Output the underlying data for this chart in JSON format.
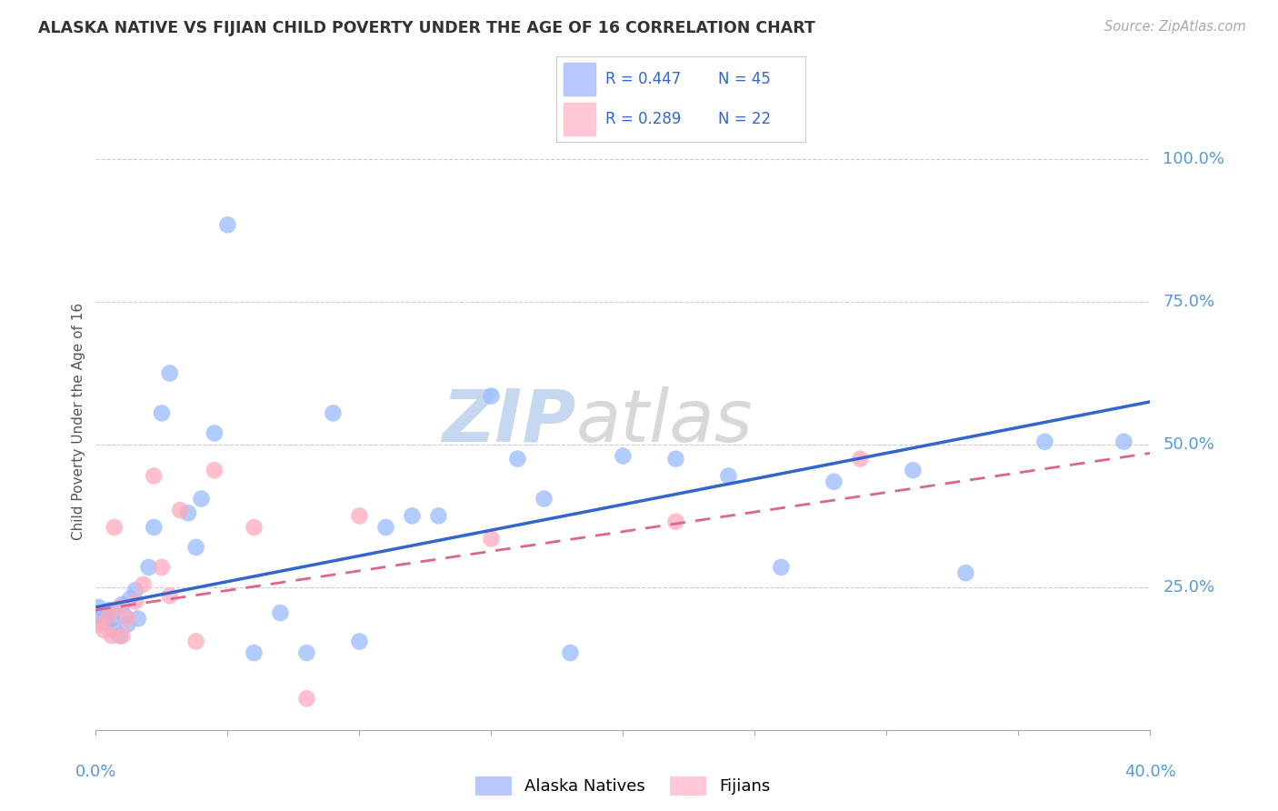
{
  "title": "ALASKA NATIVE VS FIJIAN CHILD POVERTY UNDER THE AGE OF 16 CORRELATION CHART",
  "source": "Source: ZipAtlas.com",
  "ylabel": "Child Poverty Under the Age of 16",
  "xlim": [
    0.0,
    0.4
  ],
  "ylim": [
    0.0,
    1.08
  ],
  "alaska_color": "#99bbff",
  "fijian_color": "#ffaabb",
  "alaska_line_color": "#3366cc",
  "fijian_line_color": "#dd6688",
  "alaska_x": [
    0.001,
    0.002,
    0.003,
    0.004,
    0.005,
    0.006,
    0.007,
    0.008,
    0.009,
    0.01,
    0.011,
    0.012,
    0.013,
    0.015,
    0.016,
    0.02,
    0.022,
    0.025,
    0.028,
    0.035,
    0.038,
    0.04,
    0.045,
    0.05,
    0.06,
    0.07,
    0.08,
    0.09,
    0.1,
    0.11,
    0.12,
    0.13,
    0.15,
    0.16,
    0.17,
    0.18,
    0.2,
    0.22,
    0.24,
    0.26,
    0.28,
    0.31,
    0.33,
    0.36,
    0.39
  ],
  "alaska_y": [
    0.215,
    0.2,
    0.19,
    0.185,
    0.21,
    0.195,
    0.175,
    0.21,
    0.165,
    0.22,
    0.2,
    0.185,
    0.23,
    0.245,
    0.195,
    0.285,
    0.355,
    0.555,
    0.625,
    0.38,
    0.32,
    0.405,
    0.52,
    0.885,
    0.135,
    0.205,
    0.135,
    0.555,
    0.155,
    0.355,
    0.375,
    0.375,
    0.585,
    0.475,
    0.405,
    0.135,
    0.48,
    0.475,
    0.445,
    0.285,
    0.435,
    0.455,
    0.275,
    0.505,
    0.505
  ],
  "fijian_x": [
    0.001,
    0.003,
    0.005,
    0.006,
    0.007,
    0.009,
    0.01,
    0.012,
    0.015,
    0.018,
    0.022,
    0.025,
    0.028,
    0.032,
    0.038,
    0.045,
    0.06,
    0.08,
    0.1,
    0.15,
    0.22,
    0.29
  ],
  "fijian_y": [
    0.185,
    0.175,
    0.2,
    0.165,
    0.355,
    0.215,
    0.165,
    0.195,
    0.225,
    0.255,
    0.445,
    0.285,
    0.235,
    0.385,
    0.155,
    0.455,
    0.355,
    0.055,
    0.375,
    0.335,
    0.365,
    0.475
  ],
  "alaska_trend_x": [
    0.0,
    0.4
  ],
  "alaska_trend_y": [
    0.215,
    0.575
  ],
  "fijian_trend_x": [
    0.0,
    0.4
  ],
  "fijian_trend_y": [
    0.21,
    0.485
  ],
  "ytick_values": [
    0.25,
    0.5,
    0.75,
    1.0
  ],
  "ytick_labels": [
    "25.0%",
    "50.0%",
    "75.0%",
    "100.0%"
  ],
  "xtick_positions": [
    0.0,
    0.05,
    0.1,
    0.15,
    0.2,
    0.25,
    0.3,
    0.35,
    0.4
  ],
  "grid_color": "#cccccc",
  "axis_label_color": "#5599dd",
  "title_color": "#333333",
  "background_color": "#ffffff",
  "legend_text_color": "#3366cc",
  "legend_r_alaska": "R = 0.447",
  "legend_n_alaska": "N = 45",
  "legend_r_fijian": "R = 0.289",
  "legend_n_fijian": "N = 22"
}
